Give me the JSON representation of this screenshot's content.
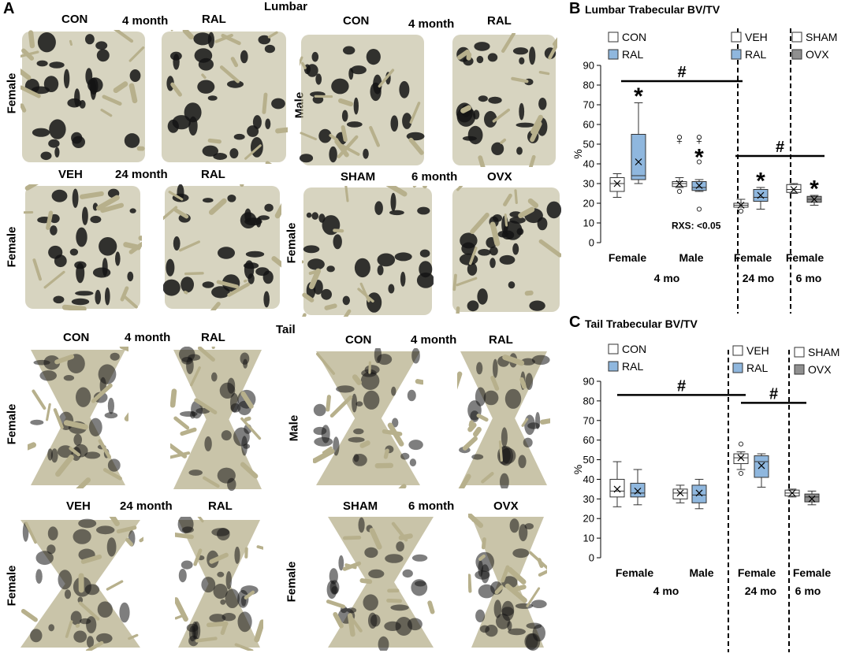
{
  "panel_a": {
    "letter": "A",
    "lumbar_title": "Lumbar",
    "tail_title": "Tail",
    "groups": {
      "con": "CON",
      "ral": "RAL",
      "veh": "VEH",
      "sham": "SHAM",
      "ovx": "OVX"
    },
    "ages": {
      "m4": "4 month",
      "m24": "24 month",
      "m6": "6 month"
    },
    "sexes": {
      "female": "Female",
      "male": "Male"
    }
  },
  "colors": {
    "bone_fill": "#b7b08c",
    "bone_shadow": "#141414",
    "box_white": "#ffffff",
    "box_blue": "#8fb7de",
    "box_gray": "#8f8f8f"
  },
  "chart_data": [
    {
      "panel": "B",
      "type": "box",
      "title": "Lumbar Trabecular BV/TV",
      "ylabel": "%",
      "ylim": [
        0,
        90
      ],
      "yticks": [
        0,
        10,
        20,
        30,
        40,
        50,
        60,
        70,
        80,
        90
      ],
      "legends": [
        {
          "entries": [
            {
              "label": "CON",
              "color": "#ffffff"
            },
            {
              "label": "RAL",
              "color": "#8fb7de"
            }
          ]
        },
        {
          "entries": [
            {
              "label": "VEH",
              "color": "#ffffff"
            },
            {
              "label": "RAL",
              "color": "#8fb7de"
            }
          ]
        },
        {
          "entries": [
            {
              "label": "SHAM",
              "color": "#ffffff"
            },
            {
              "label": "OVX",
              "color": "#8f8f8f"
            }
          ]
        }
      ],
      "categories": [
        {
          "sex": "Female",
          "age": "4 mo"
        },
        {
          "sex": "Male",
          "age": "4 mo"
        },
        {
          "sex": "Female",
          "age": "24 mo"
        },
        {
          "sex": "Female",
          "age": "6 mo"
        }
      ],
      "age_labels": [
        "4 mo",
        "24 mo",
        "6 mo"
      ],
      "boxes": [
        {
          "group": "CON",
          "category": 0,
          "color": "#ffffff",
          "min": 23,
          "q1": 26,
          "median": 30,
          "q3": 33,
          "max": 35,
          "mean": 30,
          "outliers": []
        },
        {
          "group": "RAL",
          "category": 0,
          "color": "#8fb7de",
          "min": 30,
          "q1": 32,
          "median": 34,
          "q3": 55,
          "max": 71,
          "mean": 41,
          "outliers": []
        },
        {
          "group": "CON",
          "category": 1,
          "color": "#ffffff",
          "min": 28,
          "q1": 28.5,
          "median": 30,
          "q3": 31,
          "max": 33,
          "mean": 30,
          "outliers": [
            26
          ]
        },
        {
          "group": "RAL",
          "category": 1,
          "color": "#8fb7de",
          "min": 26,
          "q1": 26.5,
          "median": 28,
          "q3": 31,
          "max": 32,
          "mean": 29,
          "outliers": [
            17,
            41
          ]
        },
        {
          "group": "VEH",
          "category": 2,
          "color": "#ffffff",
          "min": 18,
          "q1": 18,
          "median": 19,
          "q3": 20,
          "max": 22,
          "mean": 19,
          "outliers": [
            16
          ]
        },
        {
          "group": "RAL",
          "category": 2,
          "color": "#8fb7de",
          "min": 17,
          "q1": 21,
          "median": 23,
          "q3": 27,
          "max": 28,
          "mean": 24,
          "outliers": []
        },
        {
          "group": "SHAM",
          "category": 3,
          "color": "#ffffff",
          "min": 25,
          "q1": 25.5,
          "median": 27,
          "q3": 29.5,
          "max": 30,
          "mean": 27,
          "outliers": []
        },
        {
          "group": "OVX",
          "category": 3,
          "color": "#8f8f8f",
          "min": 19,
          "q1": 20.5,
          "median": 22,
          "q3": 23.5,
          "max": 24,
          "mean": 22,
          "outliers": []
        }
      ],
      "annotations": [
        {
          "text": "*",
          "category": 0,
          "group": 1,
          "y": 76
        },
        {
          "text": "♀",
          "category": 1,
          "group": 0,
          "y": 53
        },
        {
          "text": "♀",
          "category": 1,
          "group": 1,
          "y": 53
        },
        {
          "text": "*",
          "category": 1,
          "group": 1,
          "y": 45
        },
        {
          "text": "*",
          "category": 2,
          "group": 1,
          "y": 33
        },
        {
          "text": "*",
          "category": 3,
          "group": 1,
          "y": 29
        }
      ],
      "brackets": [
        {
          "text": "#",
          "y": 82,
          "from_category": 0,
          "to_category": 2
        },
        {
          "text": "#",
          "y": 44,
          "from_category": 2,
          "to_category": 3
        }
      ],
      "notes": [
        {
          "text": "RXS: <0.05",
          "category": 1,
          "y": 7
        }
      ]
    },
    {
      "panel": "C",
      "type": "box",
      "title": "Tail Trabecular BV/TV",
      "ylabel": "%",
      "ylim": [
        0,
        90
      ],
      "yticks": [
        0,
        10,
        20,
        30,
        40,
        50,
        60,
        70,
        80,
        90
      ],
      "legends": [
        {
          "entries": [
            {
              "label": "CON",
              "color": "#ffffff"
            },
            {
              "label": "RAL",
              "color": "#8fb7de"
            }
          ]
        },
        {
          "entries": [
            {
              "label": "VEH",
              "color": "#ffffff"
            },
            {
              "label": "RAL",
              "color": "#8fb7de"
            }
          ]
        },
        {
          "entries": [
            {
              "label": "SHAM",
              "color": "#ffffff"
            },
            {
              "label": "OVX",
              "color": "#8f8f8f"
            }
          ]
        }
      ],
      "categories": [
        {
          "sex": "Female",
          "age": "4 mo"
        },
        {
          "sex": "Male",
          "age": "4 mo"
        },
        {
          "sex": "Female",
          "age": "24 mo"
        },
        {
          "sex": "Female",
          "age": "6 mo"
        }
      ],
      "age_labels": [
        "4 mo",
        "24 mo",
        "6 mo"
      ],
      "boxes": [
        {
          "group": "CON",
          "category": 0,
          "color": "#ffffff",
          "min": 26,
          "q1": 31,
          "median": 34,
          "q3": 40,
          "max": 49,
          "mean": 35,
          "outliers": []
        },
        {
          "group": "RAL",
          "category": 0,
          "color": "#8fb7de",
          "min": 27,
          "q1": 31,
          "median": 33,
          "q3": 38,
          "max": 45,
          "mean": 34,
          "outliers": []
        },
        {
          "group": "CON",
          "category": 1,
          "color": "#ffffff",
          "min": 28,
          "q1": 30,
          "median": 33,
          "q3": 35,
          "max": 37,
          "mean": 33,
          "outliers": []
        },
        {
          "group": "RAL",
          "category": 1,
          "color": "#8fb7de",
          "min": 25,
          "q1": 28,
          "median": 32,
          "q3": 37,
          "max": 40,
          "mean": 33,
          "outliers": []
        },
        {
          "group": "VEH",
          "category": 2,
          "color": "#ffffff",
          "min": 45,
          "q1": 48,
          "median": 51,
          "q3": 53,
          "max": 54,
          "mean": 51,
          "outliers": [
            43,
            58
          ]
        },
        {
          "group": "RAL",
          "category": 2,
          "color": "#8fb7de",
          "min": 36,
          "q1": 41,
          "median": 49,
          "q3": 52,
          "max": 53,
          "mean": 47,
          "outliers": []
        },
        {
          "group": "SHAM",
          "category": 3,
          "color": "#ffffff",
          "min": 31,
          "q1": 31.5,
          "median": 33,
          "q3": 34.5,
          "max": 35,
          "mean": 33,
          "outliers": []
        },
        {
          "group": "OVX",
          "category": 3,
          "color": "#8f8f8f",
          "min": 27,
          "q1": 28.5,
          "median": 31,
          "q3": 32.5,
          "max": 34,
          "mean": 30,
          "outliers": []
        }
      ],
      "annotations": [],
      "brackets": [
        {
          "text": "#",
          "y": 83,
          "from_category": 0,
          "to_category": 2
        },
        {
          "text": "#",
          "y": 79,
          "from_category": 2,
          "to_category": 3
        }
      ],
      "notes": []
    }
  ]
}
